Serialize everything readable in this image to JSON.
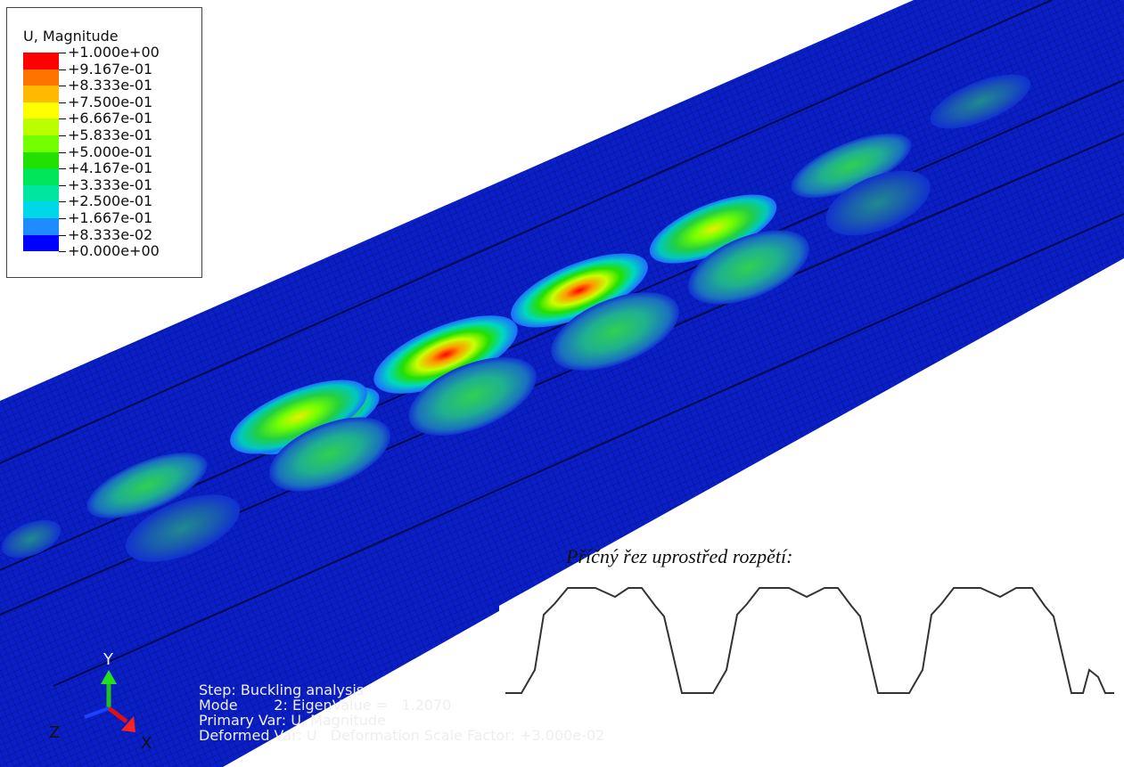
{
  "legend": {
    "title": "U, Magnitude",
    "levels": [
      "+1.000e+00",
      "+9.167e-01",
      "+8.333e-01",
      "+7.500e-01",
      "+6.667e-01",
      "+5.833e-01",
      "+5.000e-01",
      "+4.167e-01",
      "+3.333e-01",
      "+2.500e-01",
      "+1.667e-01",
      "+8.333e-02",
      "+0.000e+00"
    ],
    "colors": [
      "#ff0000",
      "#ff7300",
      "#ffb900",
      "#ffff00",
      "#b9ff00",
      "#73ff00",
      "#22e000",
      "#00e65a",
      "#00e6a0",
      "#00d8e8",
      "#1e8cff",
      "#0000ff"
    ]
  },
  "cross_section": {
    "title": "Příčný řez uprostřed rozpětí:"
  },
  "triad": {
    "y": "Y",
    "z": "Z",
    "x": "X"
  },
  "info": {
    "lines": [
      "Step: Buckling analysis",
      "Mode        2: EigenValue =   1.2070",
      "Primary Var: U, Magnitude",
      "Deformed Var: U   Deformation Scale Factor: +3.000e-02"
    ]
  }
}
